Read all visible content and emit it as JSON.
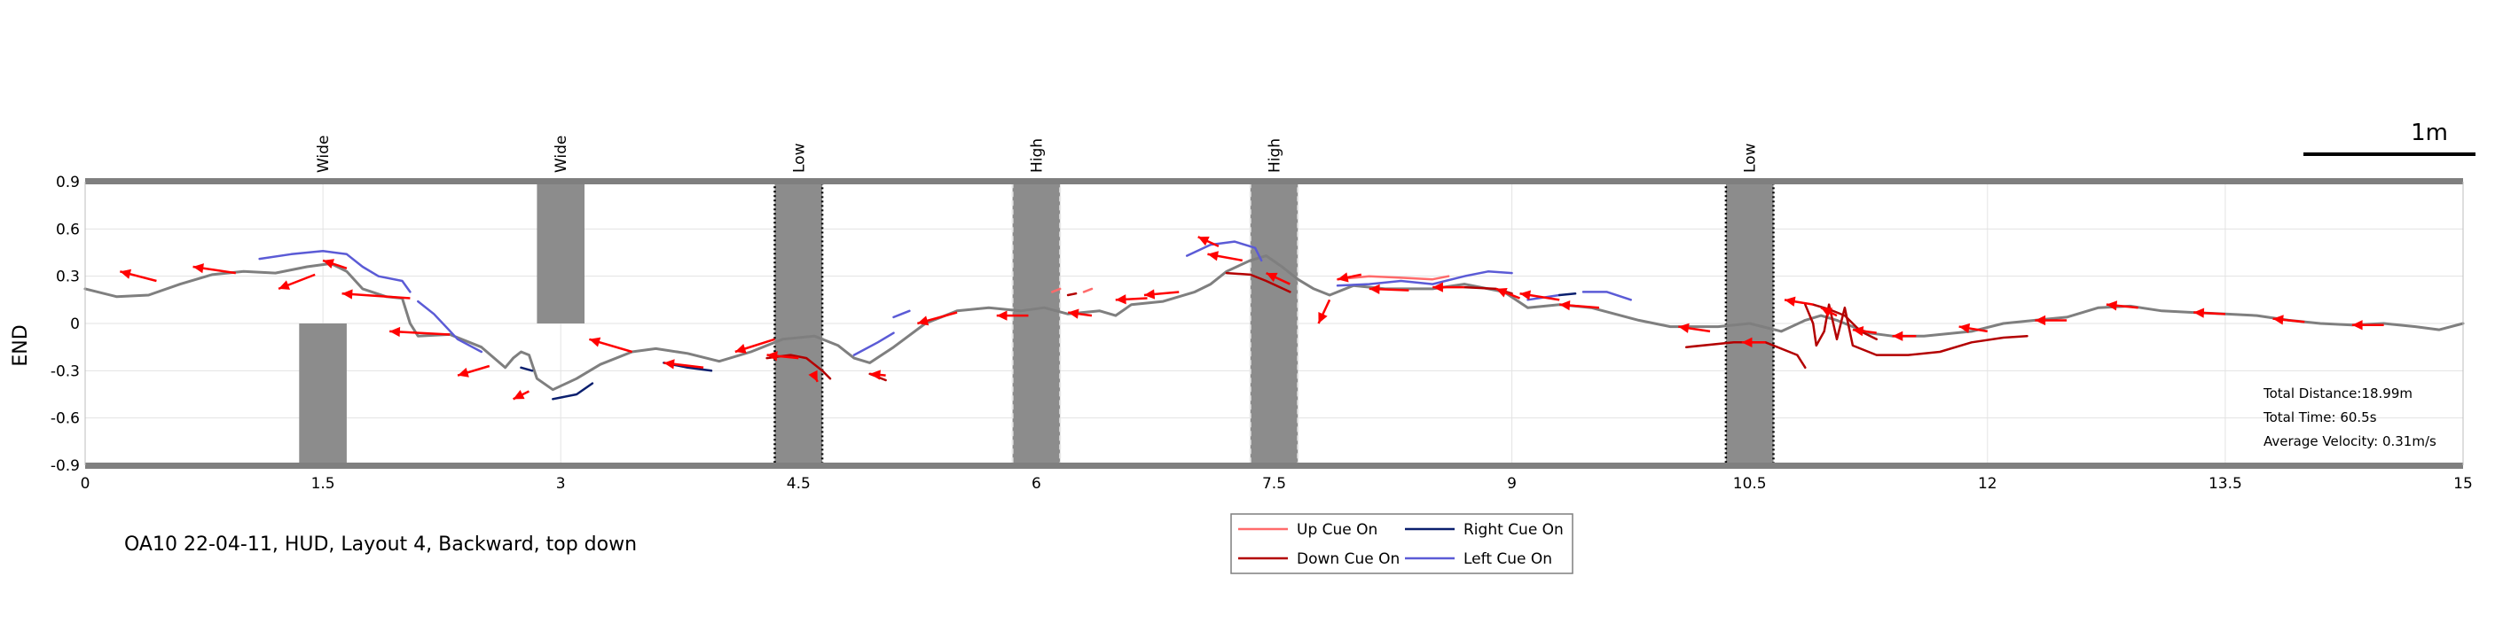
{
  "chart_data": {
    "type": "line",
    "caption": "OA10 22-04-11, HUD, Layout 4, Backward, top down",
    "ylabel": "END",
    "xlim": [
      0,
      15
    ],
    "ylim": [
      -0.9,
      0.9
    ],
    "xticks": [
      {
        "v": 0,
        "label": "0"
      },
      {
        "v": 1.5,
        "label": "1.5"
      },
      {
        "v": 3,
        "label": "3"
      },
      {
        "v": 4.5,
        "label": "4.5"
      },
      {
        "v": 6,
        "label": "6"
      },
      {
        "v": 7.5,
        "label": "7.5"
      },
      {
        "v": 9,
        "label": "9"
      },
      {
        "v": 10.5,
        "label": "10.5"
      },
      {
        "v": 12,
        "label": "12"
      },
      {
        "v": 13.5,
        "label": "13.5"
      },
      {
        "v": 15,
        "label": "15"
      }
    ],
    "yticks": [
      {
        "v": 0.9,
        "label": "0.9"
      },
      {
        "v": 0.6,
        "label": "0.6"
      },
      {
        "v": 0.3,
        "label": "0.3"
      },
      {
        "v": 0,
        "label": "0"
      },
      {
        "v": -0.3,
        "label": "-0.3"
      },
      {
        "v": -0.6,
        "label": "-0.6"
      },
      {
        "v": -0.9,
        "label": "-0.9"
      }
    ],
    "grid": true,
    "scale_bar": {
      "label": "1m",
      "length": 1
    },
    "obstacles": [
      {
        "label": "Wide",
        "x": 1.5,
        "y0": -0.9,
        "y1": 0,
        "style": "solid"
      },
      {
        "label": "Wide",
        "x": 3,
        "y0": 0,
        "y1": 0.9,
        "style": "solid"
      },
      {
        "label": "Low",
        "x": 4.5,
        "y0": -0.9,
        "y1": 0.9,
        "style": "dotted-dark"
      },
      {
        "label": "High",
        "x": 6,
        "y0": -0.9,
        "y1": 0.9,
        "style": "dashed-light"
      },
      {
        "label": "High",
        "x": 7.5,
        "y0": -0.9,
        "y1": 0.9,
        "style": "dashed-light"
      },
      {
        "label": "Low",
        "x": 10.5,
        "y0": -0.9,
        "y1": 0.9,
        "style": "dotted-dark"
      }
    ],
    "obstacle_width": 0.3,
    "colors": {
      "trajectory": "#7f7f7f",
      "arrow": "#ff0000",
      "up": "#ff6b6b",
      "down": "#b30000",
      "right": "#0a1f6e",
      "left": "#5b5bd6",
      "obstacle": "#8c8c8c",
      "border": "#7f7f7f"
    },
    "legend": {
      "position": "bottom-center",
      "entries": [
        {
          "label": "Up Cue On",
          "color": "#ff6b6b"
        },
        {
          "label": "Right Cue On",
          "color": "#0a1f6e"
        },
        {
          "label": "Down Cue On",
          "color": "#b30000"
        },
        {
          "label": "Left Cue On",
          "color": "#5b5bd6"
        }
      ]
    },
    "stats": [
      "Total Distance:18.99m",
      "Total Time: 60.5s",
      "Average Velocity: 0.31m/s"
    ],
    "series": [
      {
        "kind": "trajectory",
        "points": [
          [
            0,
            0.22
          ],
          [
            0.2,
            0.17
          ],
          [
            0.4,
            0.18
          ],
          [
            0.6,
            0.25
          ],
          [
            0.8,
            0.31
          ],
          [
            1.0,
            0.33
          ],
          [
            1.2,
            0.32
          ],
          [
            1.4,
            0.36
          ],
          [
            1.55,
            0.38
          ],
          [
            1.65,
            0.33
          ],
          [
            1.75,
            0.22
          ],
          [
            1.9,
            0.17
          ],
          [
            2.0,
            0.16
          ],
          [
            2.05,
            0.0
          ],
          [
            2.1,
            -0.08
          ],
          [
            2.3,
            -0.07
          ],
          [
            2.5,
            -0.15
          ],
          [
            2.65,
            -0.28
          ],
          [
            2.7,
            -0.22
          ],
          [
            2.75,
            -0.18
          ],
          [
            2.8,
            -0.2
          ],
          [
            2.85,
            -0.35
          ],
          [
            2.95,
            -0.42
          ],
          [
            3.1,
            -0.35
          ],
          [
            3.25,
            -0.26
          ],
          [
            3.45,
            -0.18
          ],
          [
            3.6,
            -0.16
          ],
          [
            3.8,
            -0.19
          ],
          [
            4.0,
            -0.24
          ],
          [
            4.2,
            -0.18
          ],
          [
            4.4,
            -0.1
          ],
          [
            4.6,
            -0.08
          ],
          [
            4.75,
            -0.14
          ],
          [
            4.85,
            -0.22
          ],
          [
            4.95,
            -0.25
          ],
          [
            5.1,
            -0.15
          ],
          [
            5.3,
            0.0
          ],
          [
            5.5,
            0.08
          ],
          [
            5.7,
            0.1
          ],
          [
            5.9,
            0.08
          ],
          [
            6.05,
            0.1
          ],
          [
            6.2,
            0.06
          ],
          [
            6.4,
            0.08
          ],
          [
            6.5,
            0.05
          ],
          [
            6.6,
            0.12
          ],
          [
            6.8,
            0.14
          ],
          [
            7.0,
            0.2
          ],
          [
            7.1,
            0.25
          ],
          [
            7.2,
            0.33
          ],
          [
            7.35,
            0.4
          ],
          [
            7.45,
            0.43
          ],
          [
            7.55,
            0.36
          ],
          [
            7.65,
            0.28
          ],
          [
            7.75,
            0.22
          ],
          [
            7.85,
            0.18
          ],
          [
            8.0,
            0.24
          ],
          [
            8.2,
            0.22
          ],
          [
            8.5,
            0.22
          ],
          [
            8.7,
            0.25
          ],
          [
            8.95,
            0.2
          ],
          [
            9.1,
            0.1
          ],
          [
            9.3,
            0.12
          ],
          [
            9.5,
            0.1
          ],
          [
            9.8,
            0.02
          ],
          [
            10.0,
            -0.02
          ],
          [
            10.3,
            -0.02
          ],
          [
            10.5,
            0.0
          ],
          [
            10.7,
            -0.05
          ],
          [
            10.85,
            0.02
          ],
          [
            10.95,
            0.05
          ],
          [
            11.05,
            0.02
          ],
          [
            11.15,
            -0.02
          ],
          [
            11.25,
            -0.06
          ],
          [
            11.4,
            -0.08
          ],
          [
            11.6,
            -0.08
          ],
          [
            11.9,
            -0.05
          ],
          [
            12.1,
            0.0
          ],
          [
            12.3,
            0.02
          ],
          [
            12.5,
            0.04
          ],
          [
            12.7,
            0.1
          ],
          [
            12.9,
            0.11
          ],
          [
            13.1,
            0.08
          ],
          [
            13.3,
            0.07
          ],
          [
            13.5,
            0.06
          ],
          [
            13.7,
            0.05
          ],
          [
            13.9,
            0.02
          ],
          [
            14.1,
            0.0
          ],
          [
            14.3,
            -0.01
          ],
          [
            14.5,
            0.0
          ],
          [
            14.7,
            -0.02
          ],
          [
            14.85,
            -0.04
          ],
          [
            15.0,
            0.0
          ]
        ]
      },
      {
        "kind": "left",
        "points": [
          [
            1.1,
            0.41
          ],
          [
            1.3,
            0.44
          ],
          [
            1.5,
            0.46
          ],
          [
            1.65,
            0.44
          ],
          [
            1.75,
            0.36
          ],
          [
            1.85,
            0.3
          ],
          [
            2.0,
            0.27
          ],
          [
            2.05,
            0.2
          ]
        ]
      },
      {
        "kind": "left",
        "points": [
          [
            2.1,
            0.14
          ],
          [
            2.2,
            0.06
          ],
          [
            2.35,
            -0.1
          ],
          [
            2.5,
            -0.18
          ]
        ]
      },
      {
        "kind": "right",
        "points": [
          [
            2.75,
            -0.28
          ],
          [
            2.82,
            -0.3
          ]
        ]
      },
      {
        "kind": "right",
        "points": [
          [
            2.95,
            -0.48
          ],
          [
            3.1,
            -0.45
          ],
          [
            3.2,
            -0.38
          ]
        ]
      },
      {
        "kind": "right",
        "points": [
          [
            3.65,
            -0.25
          ],
          [
            3.8,
            -0.28
          ],
          [
            3.95,
            -0.3
          ]
        ]
      },
      {
        "kind": "down",
        "points": [
          [
            4.3,
            -0.22
          ],
          [
            4.45,
            -0.2
          ],
          [
            4.55,
            -0.22
          ],
          [
            4.65,
            -0.3
          ],
          [
            4.7,
            -0.35
          ]
        ]
      },
      {
        "kind": "down",
        "points": [
          [
            4.95,
            -0.32
          ],
          [
            5.05,
            -0.36
          ]
        ]
      },
      {
        "kind": "left",
        "points": [
          [
            4.85,
            -0.2
          ],
          [
            5.0,
            -0.12
          ],
          [
            5.1,
            -0.06
          ]
        ]
      },
      {
        "kind": "left",
        "points": [
          [
            5.1,
            0.04
          ],
          [
            5.2,
            0.08
          ]
        ]
      },
      {
        "kind": "up",
        "points": [
          [
            6.1,
            0.2
          ],
          [
            6.15,
            0.22
          ]
        ]
      },
      {
        "kind": "up",
        "points": [
          [
            6.3,
            0.2
          ],
          [
            6.35,
            0.22
          ]
        ]
      },
      {
        "kind": "down",
        "points": [
          [
            6.2,
            0.18
          ],
          [
            6.25,
            0.19
          ]
        ]
      },
      {
        "kind": "left",
        "points": [
          [
            6.95,
            0.43
          ],
          [
            7.1,
            0.5
          ],
          [
            7.25,
            0.52
          ],
          [
            7.38,
            0.48
          ],
          [
            7.42,
            0.4
          ]
        ]
      },
      {
        "kind": "down",
        "points": [
          [
            7.2,
            0.32
          ],
          [
            7.35,
            0.31
          ],
          [
            7.45,
            0.27
          ],
          [
            7.6,
            0.2
          ]
        ]
      },
      {
        "kind": "up",
        "points": [
          [
            7.9,
            0.28
          ],
          [
            8.1,
            0.3
          ],
          [
            8.3,
            0.29
          ],
          [
            8.5,
            0.28
          ],
          [
            8.6,
            0.3
          ]
        ]
      },
      {
        "kind": "left",
        "points": [
          [
            7.9,
            0.24
          ],
          [
            8.1,
            0.25
          ],
          [
            8.3,
            0.27
          ],
          [
            8.5,
            0.25
          ],
          [
            8.7,
            0.3
          ],
          [
            8.85,
            0.33
          ],
          [
            9.0,
            0.32
          ]
        ]
      },
      {
        "kind": "down",
        "points": [
          [
            8.7,
            0.23
          ],
          [
            8.9,
            0.22
          ],
          [
            9.0,
            0.19
          ]
        ]
      },
      {
        "kind": "left",
        "points": [
          [
            9.1,
            0.15
          ],
          [
            9.3,
            0.18
          ]
        ]
      },
      {
        "kind": "right",
        "points": [
          [
            9.3,
            0.18
          ],
          [
            9.4,
            0.19
          ]
        ]
      },
      {
        "kind": "left",
        "points": [
          [
            9.45,
            0.2
          ],
          [
            9.6,
            0.2
          ],
          [
            9.75,
            0.15
          ]
        ]
      },
      {
        "kind": "down",
        "points": [
          [
            10.1,
            -0.15
          ],
          [
            10.4,
            -0.12
          ],
          [
            10.6,
            -0.12
          ],
          [
            10.8,
            -0.2
          ],
          [
            10.85,
            -0.28
          ]
        ]
      },
      {
        "kind": "down",
        "points": [
          [
            10.85,
            0.12
          ],
          [
            10.9,
            0.0
          ],
          [
            10.92,
            -0.14
          ],
          [
            10.97,
            -0.05
          ],
          [
            11.0,
            0.12
          ],
          [
            11.05,
            -0.1
          ],
          [
            11.1,
            0.1
          ],
          [
            11.15,
            -0.14
          ],
          [
            11.3,
            -0.2
          ],
          [
            11.5,
            -0.2
          ],
          [
            11.7,
            -0.18
          ],
          [
            11.9,
            -0.12
          ],
          [
            12.1,
            -0.09
          ],
          [
            12.25,
            -0.08
          ]
        ]
      },
      {
        "kind": "down",
        "points": [
          [
            10.9,
            0.12
          ],
          [
            11.0,
            0.09
          ],
          [
            11.1,
            0.05
          ],
          [
            11.2,
            -0.05
          ],
          [
            11.3,
            -0.1
          ]
        ]
      }
    ],
    "arrows": [
      [
        0.45,
        0.27,
        0.22,
        0.33
      ],
      [
        0.95,
        0.32,
        0.68,
        0.36
      ],
      [
        1.45,
        0.31,
        1.22,
        0.22
      ],
      [
        1.65,
        0.35,
        1.5,
        0.4
      ],
      [
        2.05,
        0.16,
        1.62,
        0.19
      ],
      [
        2.3,
        -0.07,
        1.92,
        -0.05
      ],
      [
        2.55,
        -0.27,
        2.35,
        -0.33
      ],
      [
        2.8,
        -0.43,
        2.7,
        -0.48
      ],
      [
        3.45,
        -0.18,
        3.18,
        -0.1
      ],
      [
        3.9,
        -0.28,
        3.65,
        -0.25
      ],
      [
        4.35,
        -0.1,
        4.1,
        -0.18
      ],
      [
        4.5,
        -0.22,
        4.3,
        -0.2
      ],
      [
        4.6,
        -0.33,
        4.62,
        -0.37
      ],
      [
        5.05,
        -0.33,
        4.95,
        -0.32
      ],
      [
        5.5,
        0.07,
        5.25,
        0.0
      ],
      [
        5.95,
        0.05,
        5.75,
        0.05
      ],
      [
        6.35,
        0.05,
        6.2,
        0.07
      ],
      [
        6.7,
        0.16,
        6.5,
        0.15
      ],
      [
        6.9,
        0.2,
        6.68,
        0.18
      ],
      [
        7.15,
        0.49,
        7.02,
        0.55
      ],
      [
        7.3,
        0.4,
        7.08,
        0.44
      ],
      [
        7.6,
        0.25,
        7.45,
        0.32
      ],
      [
        7.85,
        0.15,
        7.78,
        0.0
      ],
      [
        8.05,
        0.31,
        7.9,
        0.28
      ],
      [
        8.35,
        0.21,
        8.1,
        0.22
      ],
      [
        8.7,
        0.23,
        8.5,
        0.23
      ],
      [
        9.05,
        0.16,
        8.9,
        0.22
      ],
      [
        9.3,
        0.15,
        9.05,
        0.19
      ],
      [
        9.55,
        0.1,
        9.3,
        0.12
      ],
      [
        10.25,
        -0.05,
        10.05,
        -0.02
      ],
      [
        10.6,
        -0.12,
        10.45,
        -0.12
      ],
      [
        10.9,
        0.12,
        10.72,
        0.15
      ],
      [
        11.05,
        0.05,
        10.95,
        0.1
      ],
      [
        11.3,
        -0.06,
        11.15,
        -0.04
      ],
      [
        11.55,
        -0.08,
        11.4,
        -0.08
      ],
      [
        12.0,
        -0.05,
        11.82,
        -0.02
      ],
      [
        12.5,
        0.02,
        12.3,
        0.02
      ],
      [
        12.95,
        0.1,
        12.75,
        0.12
      ],
      [
        13.5,
        0.06,
        13.3,
        0.07
      ],
      [
        14.0,
        0.01,
        13.8,
        0.03
      ],
      [
        14.5,
        -0.01,
        14.3,
        -0.01
      ]
    ]
  }
}
